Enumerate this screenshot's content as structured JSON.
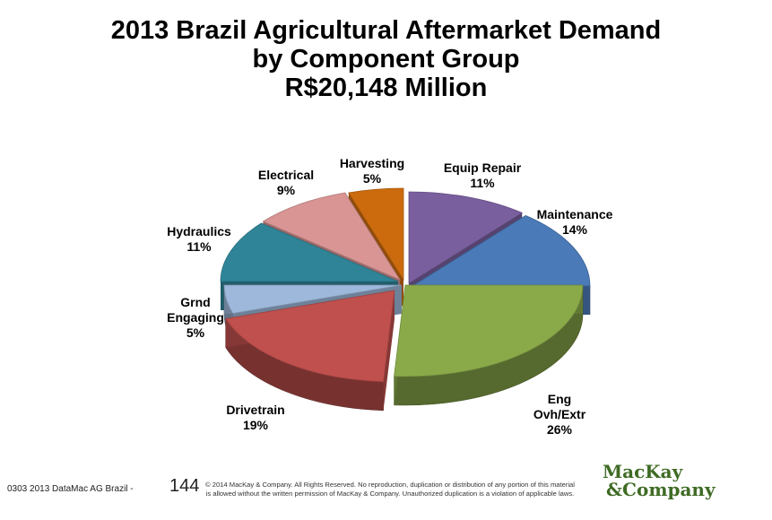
{
  "chart_data": {
    "type": "pie",
    "title": [
      "2013 Brazil Agricultural Aftermarket Demand",
      "by Component Group",
      "R$20,148 Million"
    ],
    "slices": [
      {
        "name": "Equip Repair",
        "value": 11,
        "label": "11%",
        "color": "#7a5f9e"
      },
      {
        "name": "Maintenance",
        "value": 14,
        "label": "14%",
        "color": "#4a7ab7"
      },
      {
        "name": "Eng Ovh/Extr",
        "value": 26,
        "label": "26%",
        "color": "#8aaa4a"
      },
      {
        "name": "Drivetrain",
        "value": 19,
        "label": "19%",
        "color": "#c0504d"
      },
      {
        "name": "Grnd Engaging",
        "value": 5,
        "label": "5%",
        "color": "#9db8da"
      },
      {
        "name": "Hydraulics",
        "value": 11,
        "label": "11%",
        "color": "#2f8597"
      },
      {
        "name": "Electrical",
        "value": 9,
        "label": "9%",
        "color": "#d89594"
      },
      {
        "name": "Harvesting",
        "value": 5,
        "label": "5%",
        "color": "#cc6b0e"
      }
    ]
  },
  "footer": {
    "source": "0303 2013 DataMac AG Brazil -",
    "page": "144",
    "copyright_line1": "© 2014 MacKay & Company.  All Rights Reserved.  No reproduction, duplication or distribution of any portion of this material",
    "copyright_line2": "is allowed without the written permission of MacKay & Company. Unauthorized duplication is a violation of applicable laws.",
    "logo_line1": "MacKay",
    "logo_line2": "&Company"
  }
}
